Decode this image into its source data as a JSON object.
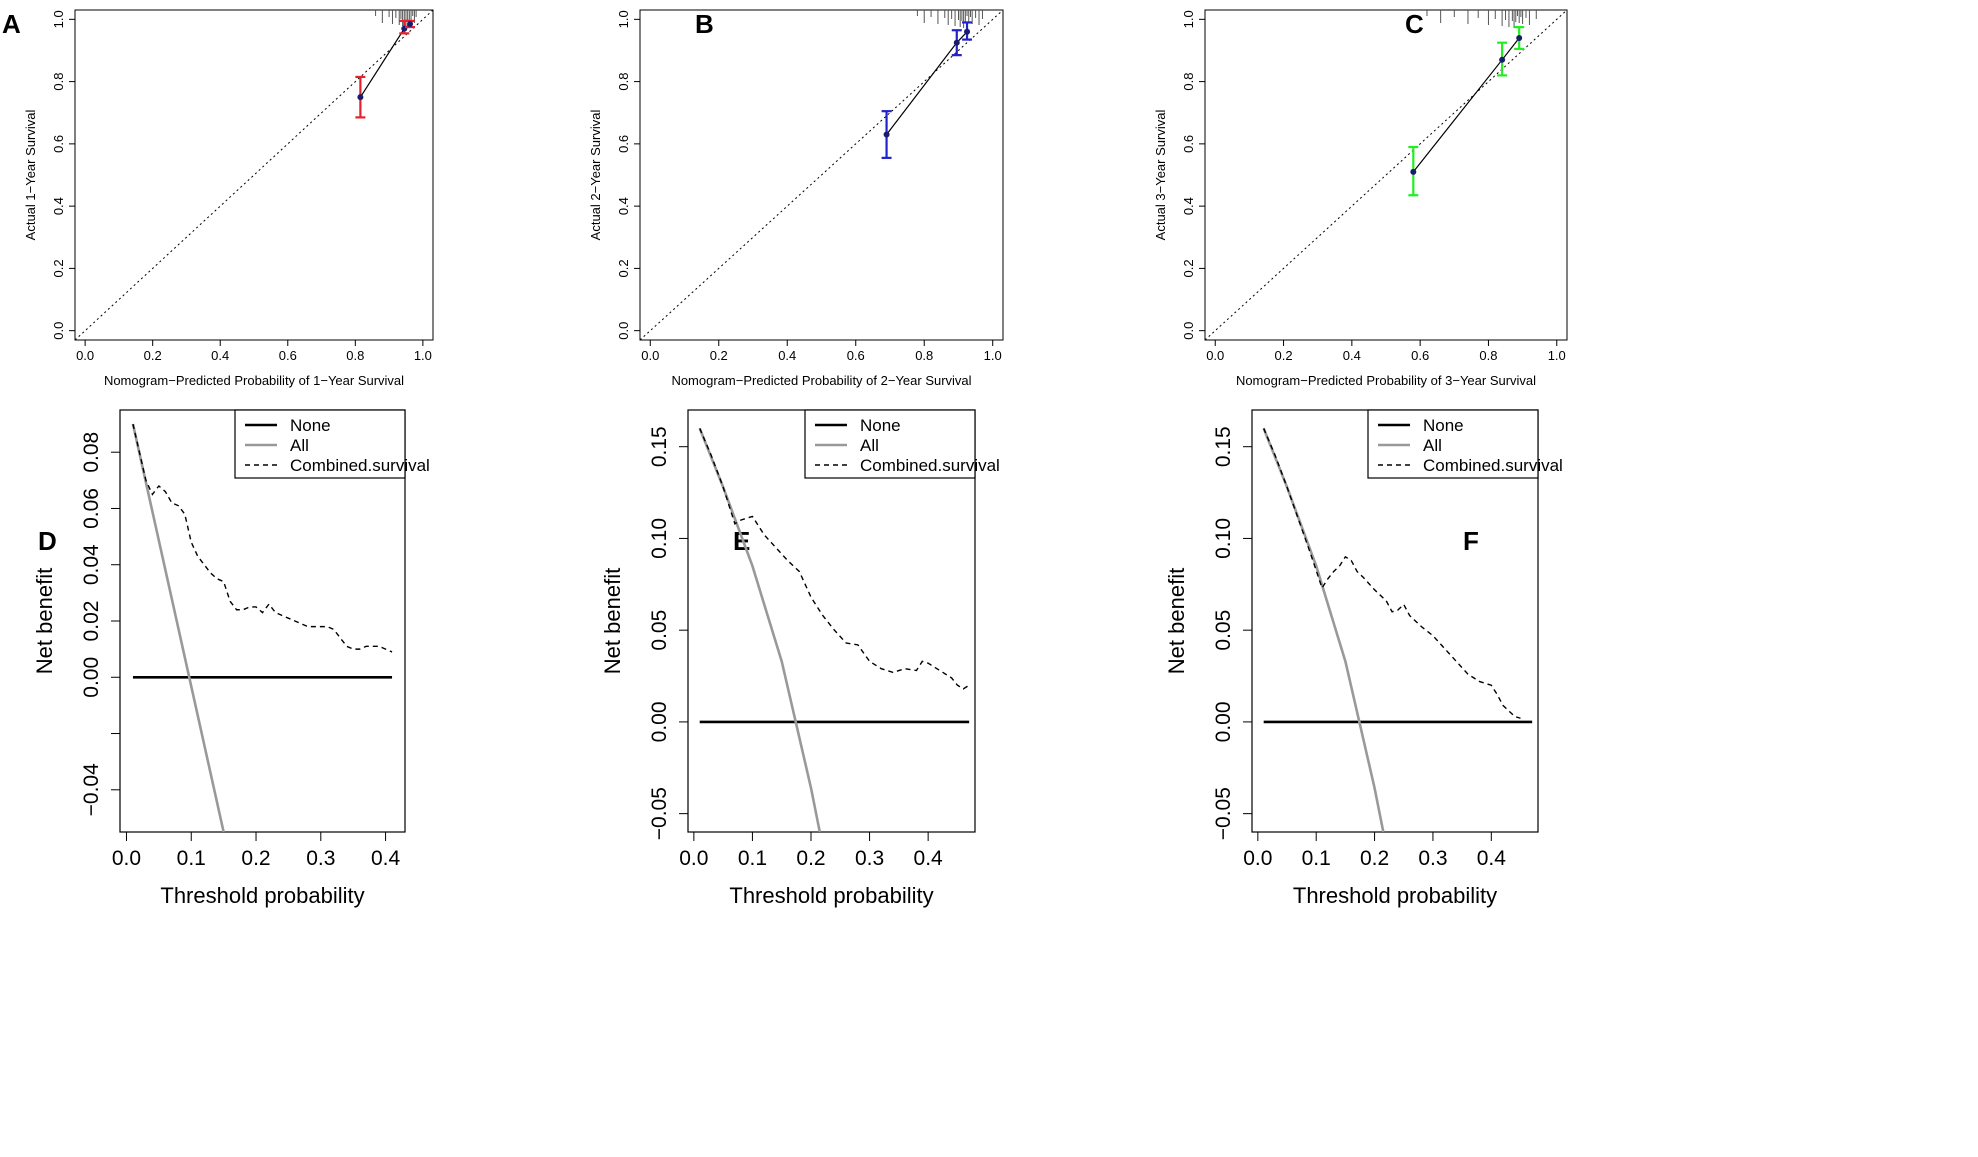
{
  "figure": {
    "panels": [
      {
        "id": "A",
        "letter": "A"
      },
      {
        "id": "B",
        "letter": "B"
      },
      {
        "id": "C",
        "letter": "C"
      },
      {
        "id": "D",
        "letter": "D"
      },
      {
        "id": "E",
        "letter": "E"
      },
      {
        "id": "F",
        "letter": "F"
      }
    ]
  },
  "chart_data": [
    {
      "id": "A",
      "type": "scatter",
      "subtype": "calibration",
      "xlabel": "Nomogram−Predicted Probability of 1−Year Survival",
      "ylabel": "Actual 1−Year Survival",
      "xlim": [
        -0.03,
        1.03
      ],
      "ylim": [
        -0.03,
        1.03
      ],
      "xticks": [
        0.0,
        0.2,
        0.4,
        0.6,
        0.8,
        1.0
      ],
      "yticks": [
        0.0,
        0.2,
        0.4,
        0.6,
        0.8,
        1.0
      ],
      "tick_labels": [
        "0.0",
        "0.2",
        "0.4",
        "0.6",
        "0.8",
        "1.0"
      ],
      "ci_color": "#e8202a",
      "points": [
        {
          "x": 0.815,
          "y": 0.75,
          "lo": 0.685,
          "hi": 0.815
        },
        {
          "x": 0.945,
          "y": 0.97,
          "lo": 0.955,
          "hi": 0.995
        },
        {
          "x": 0.962,
          "y": 0.985,
          "lo": 0.975,
          "hi": 0.995
        }
      ],
      "rug": [
        0.86,
        0.88,
        0.9,
        0.91,
        0.92,
        0.93,
        0.935,
        0.94,
        0.945,
        0.95,
        0.955,
        0.96,
        0.965,
        0.97,
        0.975,
        0.98
      ]
    },
    {
      "id": "B",
      "type": "scatter",
      "subtype": "calibration",
      "xlabel": "Nomogram−Predicted Probability of 2−Year Survival",
      "ylabel": "Actual 2−Year Survival",
      "xlim": [
        -0.03,
        1.03
      ],
      "ylim": [
        -0.03,
        1.03
      ],
      "xticks": [
        0.0,
        0.2,
        0.4,
        0.6,
        0.8,
        1.0
      ],
      "yticks": [
        0.0,
        0.2,
        0.4,
        0.6,
        0.8,
        1.0
      ],
      "tick_labels": [
        "0.0",
        "0.2",
        "0.4",
        "0.6",
        "0.8",
        "1.0"
      ],
      "ci_color": "#2222cc",
      "points": [
        {
          "x": 0.69,
          "y": 0.63,
          "lo": 0.555,
          "hi": 0.705
        },
        {
          "x": 0.895,
          "y": 0.925,
          "lo": 0.885,
          "hi": 0.965
        },
        {
          "x": 0.925,
          "y": 0.96,
          "lo": 0.935,
          "hi": 0.99
        }
      ],
      "rug": [
        0.78,
        0.8,
        0.82,
        0.84,
        0.86,
        0.87,
        0.88,
        0.89,
        0.9,
        0.905,
        0.91,
        0.915,
        0.92,
        0.925,
        0.93,
        0.935,
        0.94,
        0.95,
        0.96,
        0.97
      ]
    },
    {
      "id": "C",
      "type": "scatter",
      "subtype": "calibration",
      "xlabel": "Nomogram−Predicted Probability of 3−Year Survival",
      "ylabel": "Actual 3−Year Survival",
      "xlim": [
        -0.03,
        1.03
      ],
      "ylim": [
        -0.03,
        1.03
      ],
      "xticks": [
        0.0,
        0.2,
        0.4,
        0.6,
        0.8,
        1.0
      ],
      "yticks": [
        0.0,
        0.2,
        0.4,
        0.6,
        0.8,
        1.0
      ],
      "tick_labels": [
        "0.0",
        "0.2",
        "0.4",
        "0.6",
        "0.8",
        "1.0"
      ],
      "ci_color": "#22ee22",
      "points": [
        {
          "x": 0.58,
          "y": 0.51,
          "lo": 0.435,
          "hi": 0.59
        },
        {
          "x": 0.84,
          "y": 0.87,
          "lo": 0.82,
          "hi": 0.925
        },
        {
          "x": 0.89,
          "y": 0.94,
          "lo": 0.905,
          "hi": 0.975
        }
      ],
      "rug": [
        0.62,
        0.66,
        0.7,
        0.74,
        0.77,
        0.8,
        0.82,
        0.84,
        0.85,
        0.86,
        0.87,
        0.875,
        0.88,
        0.885,
        0.89,
        0.895,
        0.9,
        0.91,
        0.92,
        0.94
      ]
    },
    {
      "id": "D",
      "type": "line",
      "subtype": "decision-curve",
      "xlabel": "Threshold probability",
      "ylabel": "Net benefit",
      "xlim": [
        -0.01,
        0.43
      ],
      "ylim": [
        -0.055,
        0.095
      ],
      "xticks": [
        0.0,
        0.1,
        0.2,
        0.3,
        0.4
      ],
      "xtick_labels": [
        "0.0",
        "0.1",
        "0.2",
        "0.3",
        "0.4"
      ],
      "yticks": [
        -0.04,
        -0.02,
        0.0,
        0.02,
        0.04,
        0.06,
        0.08
      ],
      "ytick_labels": [
        "−0.04",
        "",
        "0.00",
        "0.02",
        "0.04",
        "0.06",
        "0.08"
      ],
      "legend": [
        "None",
        "All",
        "Combined.survival"
      ],
      "series": [
        {
          "name": "None",
          "x": [
            0.01,
            0.41
          ],
          "y": [
            0.0,
            0.0
          ]
        },
        {
          "name": "All",
          "x": [
            0.01,
            0.15
          ],
          "y": [
            0.09,
            -0.055
          ]
        },
        {
          "name": "Combined.survival",
          "x": [
            0.01,
            0.02,
            0.03,
            0.04,
            0.05,
            0.06,
            0.07,
            0.08,
            0.09,
            0.1,
            0.11,
            0.12,
            0.13,
            0.14,
            0.15,
            0.16,
            0.17,
            0.18,
            0.19,
            0.2,
            0.21,
            0.22,
            0.23,
            0.24,
            0.25,
            0.26,
            0.27,
            0.28,
            0.29,
            0.3,
            0.31,
            0.32,
            0.33,
            0.34,
            0.35,
            0.36,
            0.37,
            0.38,
            0.39,
            0.4,
            0.41
          ],
          "y": [
            0.09,
            0.08,
            0.07,
            0.065,
            0.068,
            0.066,
            0.062,
            0.061,
            0.058,
            0.048,
            0.043,
            0.04,
            0.037,
            0.035,
            0.034,
            0.027,
            0.024,
            0.024,
            0.025,
            0.025,
            0.023,
            0.026,
            0.023,
            0.022,
            0.021,
            0.02,
            0.019,
            0.018,
            0.018,
            0.018,
            0.018,
            0.017,
            0.014,
            0.011,
            0.01,
            0.01,
            0.011,
            0.011,
            0.011,
            0.01,
            0.009
          ]
        }
      ]
    },
    {
      "id": "E",
      "type": "line",
      "subtype": "decision-curve",
      "xlabel": "Threshold probability",
      "ylabel": "Net benefit",
      "xlim": [
        -0.01,
        0.48
      ],
      "ylim": [
        -0.06,
        0.17
      ],
      "xticks": [
        0.0,
        0.1,
        0.2,
        0.3,
        0.4
      ],
      "xtick_labels": [
        "0.0",
        "0.1",
        "0.2",
        "0.3",
        "0.4"
      ],
      "yticks": [
        -0.05,
        0.0,
        0.05,
        0.1,
        0.15
      ],
      "ytick_labels": [
        "−0.05",
        "0.00",
        "0.05",
        "0.10",
        "0.15"
      ],
      "legend": [
        "None",
        "All",
        "Combined.survival"
      ],
      "series": [
        {
          "name": "None",
          "x": [
            0.01,
            0.47
          ],
          "y": [
            0.0,
            0.0
          ]
        },
        {
          "name": "All",
          "x": [
            0.01,
            0.05,
            0.1,
            0.15,
            0.2,
            0.215
          ],
          "y": [
            0.16,
            0.128,
            0.085,
            0.033,
            -0.036,
            -0.06
          ]
        },
        {
          "name": "Combined.survival",
          "x": [
            0.01,
            0.03,
            0.05,
            0.07,
            0.08,
            0.1,
            0.12,
            0.14,
            0.16,
            0.18,
            0.2,
            0.22,
            0.24,
            0.26,
            0.28,
            0.3,
            0.32,
            0.34,
            0.36,
            0.38,
            0.39,
            0.4,
            0.42,
            0.44,
            0.45,
            0.46,
            0.47
          ],
          "y": [
            0.16,
            0.145,
            0.128,
            0.108,
            0.11,
            0.112,
            0.102,
            0.095,
            0.088,
            0.082,
            0.068,
            0.058,
            0.05,
            0.043,
            0.042,
            0.033,
            0.029,
            0.027,
            0.029,
            0.028,
            0.033,
            0.032,
            0.028,
            0.024,
            0.02,
            0.018,
            0.02
          ]
        }
      ]
    },
    {
      "id": "F",
      "type": "line",
      "subtype": "decision-curve",
      "xlabel": "Threshold probability",
      "ylabel": "Net benefit",
      "xlim": [
        -0.01,
        0.48
      ],
      "ylim": [
        -0.06,
        0.17
      ],
      "xticks": [
        0.0,
        0.1,
        0.2,
        0.3,
        0.4
      ],
      "xtick_labels": [
        "0.0",
        "0.1",
        "0.2",
        "0.3",
        "0.4"
      ],
      "yticks": [
        -0.05,
        0.0,
        0.05,
        0.1,
        0.15
      ],
      "ytick_labels": [
        "−0.05",
        "0.00",
        "0.05",
        "0.10",
        "0.15"
      ],
      "legend": [
        "None",
        "All",
        "Combined.survival"
      ],
      "series": [
        {
          "name": "None",
          "x": [
            0.01,
            0.47
          ],
          "y": [
            0.0,
            0.0
          ]
        },
        {
          "name": "All",
          "x": [
            0.01,
            0.05,
            0.1,
            0.15,
            0.2,
            0.215
          ],
          "y": [
            0.16,
            0.128,
            0.085,
            0.033,
            -0.036,
            -0.06
          ]
        },
        {
          "name": "Combined.survival",
          "x": [
            0.01,
            0.03,
            0.05,
            0.07,
            0.09,
            0.11,
            0.12,
            0.13,
            0.14,
            0.15,
            0.16,
            0.17,
            0.18,
            0.2,
            0.22,
            0.23,
            0.24,
            0.25,
            0.26,
            0.28,
            0.3,
            0.32,
            0.34,
            0.36,
            0.38,
            0.4,
            0.41,
            0.42,
            0.44,
            0.45
          ],
          "y": [
            0.16,
            0.145,
            0.128,
            0.11,
            0.092,
            0.073,
            0.078,
            0.082,
            0.085,
            0.09,
            0.088,
            0.082,
            0.079,
            0.072,
            0.066,
            0.06,
            0.061,
            0.064,
            0.058,
            0.052,
            0.047,
            0.04,
            0.033,
            0.026,
            0.022,
            0.02,
            0.015,
            0.009,
            0.003,
            0.002
          ]
        }
      ]
    }
  ]
}
